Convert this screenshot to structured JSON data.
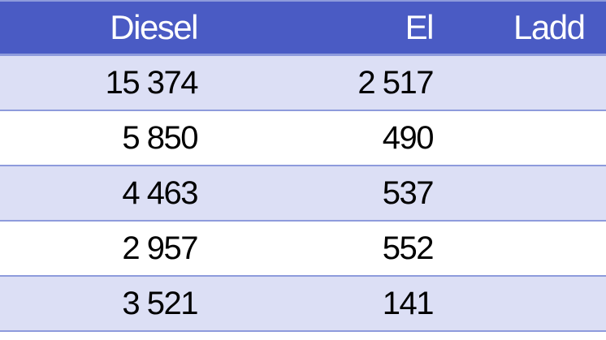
{
  "table": {
    "headers": [
      "Diesel",
      "El",
      "Ladd"
    ],
    "rows": [
      [
        "15 374",
        "2 517",
        ""
      ],
      [
        "5 850",
        "490",
        ""
      ],
      [
        "4 463",
        "537",
        ""
      ],
      [
        "2 957",
        "552",
        ""
      ],
      [
        "3 521",
        "141",
        ""
      ]
    ]
  },
  "colors": {
    "header_bg": "#4a5bc4",
    "stripe_bg": "#dcdff5",
    "border": "#8e9bdc"
  }
}
